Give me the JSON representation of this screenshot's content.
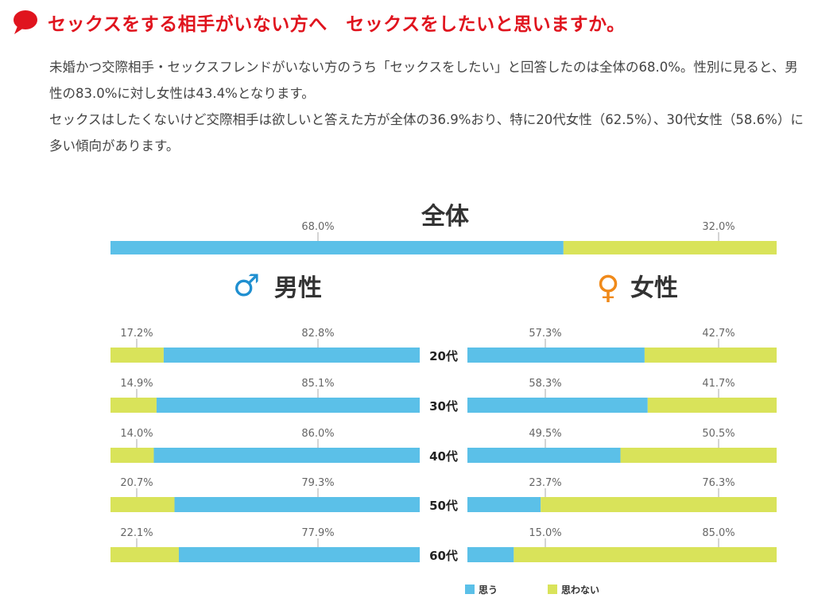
{
  "heading": {
    "title": "セックスをする相手がいない方へ　セックスをしたいと思いますか。"
  },
  "intro": {
    "line1": "未婚かつ交際相手・セックスフレンドがいない方のうち「セックスをしたい」と回答したのは全体の68.0%。性別に見ると、男性の83.0%に対し女性は43.4%となります。",
    "line2": "セックスはしたくないけど交際相手は欲しいと答えた方が全体の36.9%おり、特に20代女性（62.5%）、30代女性（58.6%）に多い傾向があります。"
  },
  "colors": {
    "accent": "#e0141e",
    "yes": "#5bc0e8",
    "no": "#d9e35a",
    "male": "#1f8fd0",
    "female": "#f08a1a"
  },
  "chart_data": {
    "type": "bar",
    "overall": {
      "title": "全体",
      "yes": 68.0,
      "no": 32.0,
      "yes_label": "68.0%",
      "no_label": "32.0%"
    },
    "male": {
      "title": "男性",
      "symbol": "♂",
      "categories": [
        "20代",
        "30代",
        "40代",
        "50代",
        "60代"
      ],
      "yes": [
        82.8,
        85.1,
        86.0,
        79.3,
        77.9
      ],
      "no": [
        17.2,
        14.9,
        14.0,
        20.7,
        22.1
      ],
      "yes_labels": [
        "82.8%",
        "85.1%",
        "86.0%",
        "79.3%",
        "77.9%"
      ],
      "no_labels": [
        "17.2%",
        "14.9%",
        "14.0%",
        "20.7%",
        "22.1%"
      ]
    },
    "female": {
      "title": "女性",
      "symbol": "♀",
      "categories": [
        "20代",
        "30代",
        "40代",
        "50代",
        "60代"
      ],
      "yes": [
        57.3,
        58.3,
        49.5,
        23.7,
        15.0
      ],
      "no": [
        42.7,
        41.7,
        50.5,
        76.3,
        85.0
      ],
      "yes_labels": [
        "57.3%",
        "58.3%",
        "49.5%",
        "23.7%",
        "15.0%"
      ],
      "no_labels": [
        "42.7%",
        "41.7%",
        "50.5%",
        "76.3%",
        "85.0%"
      ]
    },
    "legend": {
      "yes": "思う",
      "no": "思わない"
    }
  }
}
